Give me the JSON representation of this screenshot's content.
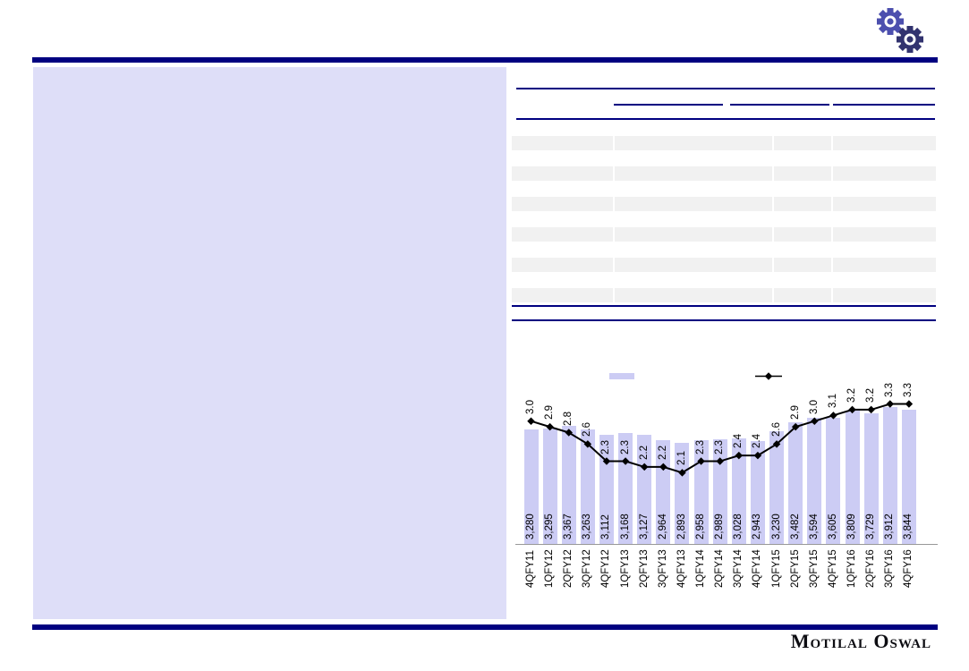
{
  "page": {
    "colors": {
      "navy": "#000080",
      "placeholder_lavender": "#dedef8",
      "bar_lavender": "#ccccf4",
      "table_row_gray": "#f1f1f1",
      "axis_gray": "#999999",
      "line_black": "#000000"
    }
  },
  "header": {
    "gear_front_color": "#32336f",
    "gear_back_color": "#4c4fae"
  },
  "table": {
    "num_striped_rows": 6,
    "num_columns": 4,
    "num_header_group_underlines": 3,
    "visible_text": ""
  },
  "chart_data": {
    "type": "bar+line",
    "title": "",
    "xlabel": "",
    "ylabel": "",
    "categories": [
      "4QFY11",
      "1QFY12",
      "2QFY12",
      "3QFY12",
      "4QFY12",
      "1QFY13",
      "2QFY13",
      "3QFY13",
      "4QFY13",
      "1QFY14",
      "2QFY14",
      "3QFY14",
      "4QFY14",
      "1QFY15",
      "2QFY15",
      "3QFY15",
      "4QFY15",
      "1QFY16",
      "2QFY16",
      "3QFY16",
      "4QFY16"
    ],
    "series": [
      {
        "name": "bar-series",
        "type": "bar",
        "color": "#ccccf4",
        "values": [
          3280,
          3295,
          3367,
          3263,
          3112,
          3168,
          3127,
          2964,
          2893,
          2958,
          2989,
          3028,
          2943,
          3230,
          3482,
          3594,
          3605,
          3809,
          3729,
          3912,
          3844
        ],
        "labels": [
          "3,280",
          "3,295",
          "3,367",
          "3,263",
          "3,112",
          "3,168",
          "3,127",
          "2,964",
          "2,893",
          "2,958",
          "2,989",
          "3,028",
          "2,943",
          "3,230",
          "3,482",
          "3,594",
          "3,605",
          "3,809",
          "3,729",
          "3,912",
          "3,844"
        ]
      },
      {
        "name": "line-series",
        "type": "line",
        "color": "#000000",
        "marker": "diamond",
        "values": [
          3.0,
          2.9,
          2.8,
          2.6,
          2.3,
          2.3,
          2.2,
          2.2,
          2.1,
          2.3,
          2.3,
          2.4,
          2.4,
          2.6,
          2.9,
          3.0,
          3.1,
          3.2,
          3.2,
          3.3,
          3.3
        ],
        "labels": [
          "3.0",
          "2.9",
          "2.8",
          "2.6",
          "2.3",
          "2.3",
          "2.2",
          "2.2",
          "2.1",
          "2.3",
          "2.3",
          "2.4",
          "2.4",
          "2.6",
          "2.9",
          "3.0",
          "3.1",
          "3.2",
          "3.2",
          "3.3",
          "3.3"
        ]
      }
    ],
    "legend": {
      "position": "top-inside",
      "entries": [
        {
          "name": "bar-series-swatch",
          "label": ""
        },
        {
          "name": "line-series-swatch",
          "label": ""
        }
      ]
    },
    "value_labels_rotated": true,
    "x_labels_rotated": true,
    "gridlines": false
  },
  "footer": {
    "logo_text": "Motilal Oswal"
  }
}
